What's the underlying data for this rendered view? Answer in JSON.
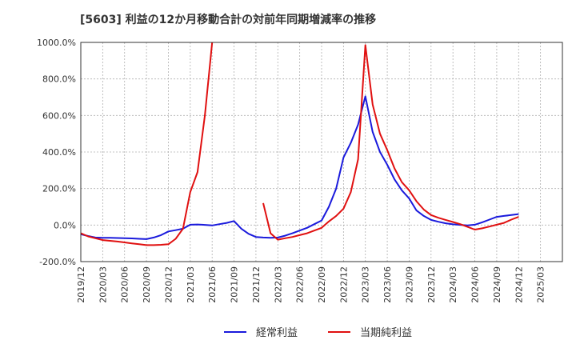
{
  "page": {
    "title": "[5603]  利益の12か月移動合計の対前年同期増減率の推移"
  },
  "colors": {
    "keijou": "#1a1adc",
    "junri": "#e01010",
    "grid": "#b0b0b0",
    "axis": "#333333"
  },
  "chart_data": {
    "type": "line",
    "title": "[5603]  利益の12か月移動合計の対前年同期増減率の推移",
    "xlabel": "",
    "ylabel": "",
    "ylim": [
      -200,
      1000
    ],
    "yticks": [
      1000,
      800,
      600,
      400,
      200,
      0,
      -200
    ],
    "ytick_labels": [
      "1000.0%",
      "800.0%",
      "600.0%",
      "400.0%",
      "200.0%",
      "0.0%",
      "-200.0%"
    ],
    "x_start": "2019/12",
    "x_months_total": 66,
    "xtick_labels": [
      "2019/12",
      "2020/03",
      "2020/06",
      "2020/09",
      "2020/12",
      "2021/03",
      "2021/06",
      "2021/09",
      "2021/12",
      "2022/03",
      "2022/06",
      "2022/09",
      "2022/12",
      "2023/03",
      "2023/06",
      "2023/09",
      "2023/12",
      "2024/03",
      "2024/06",
      "2024/09",
      "2024/12",
      "2025/03"
    ],
    "series": [
      {
        "name": "経常利益",
        "color": "#1a1adc",
        "values": [
          -50,
          -60,
          -68,
          -70,
          -70,
          -71,
          -72,
          -73,
          -75,
          -77,
          -68,
          -55,
          -35,
          -28,
          -20,
          2,
          3,
          1,
          -2,
          5,
          12,
          22,
          -20,
          -48,
          -65,
          -68,
          -70,
          -68,
          -58,
          -45,
          -30,
          -15,
          5,
          25,
          100,
          200,
          370,
          450,
          550,
          705,
          510,
          400,
          330,
          250,
          190,
          145,
          80,
          50,
          28,
          18,
          10,
          4,
          1,
          -2,
          2,
          15,
          30,
          45,
          50,
          55,
          60,
          null,
          null,
          null,
          null,
          null,
          null
        ]
      },
      {
        "name": "当期純利益",
        "color": "#e01010",
        "values": [
          -45,
          -62,
          -72,
          -82,
          -86,
          -90,
          -95,
          -100,
          -105,
          -110,
          -110,
          -108,
          -105,
          -75,
          -20,
          180,
          290,
          600,
          1000,
          null,
          null,
          null,
          null,
          null,
          null,
          120,
          -45,
          -80,
          -72,
          -65,
          -55,
          -45,
          -30,
          -15,
          20,
          50,
          90,
          180,
          360,
          985,
          660,
          500,
          410,
          310,
          235,
          190,
          130,
          85,
          55,
          40,
          28,
          17,
          5,
          -10,
          -25,
          -18,
          -8,
          2,
          12,
          30,
          45,
          null,
          null,
          null,
          null,
          null,
          null
        ]
      }
    ],
    "legend": [
      "経常利益",
      "当期純利益"
    ]
  }
}
